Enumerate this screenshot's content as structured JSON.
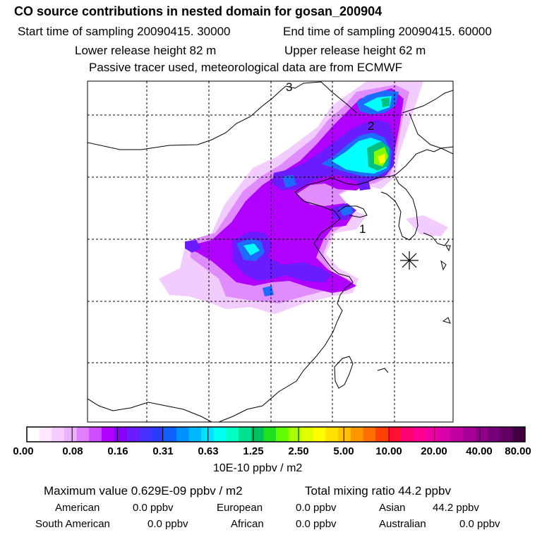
{
  "header": {
    "title": "CO  source contributions in nested domain for gosan_200904",
    "start_time": "Start time of sampling 20090415. 30000",
    "end_time": "End time of sampling 20090415. 60000",
    "lower_release": "Lower release height   82 m",
    "upper_release": "Upper release height   62 m",
    "note": "Passive tracer used, meteorological data are from ECMWF"
  },
  "map": {
    "track_labels": [
      "1",
      "2",
      "3"
    ],
    "receptor_marker": "asterisk-icon",
    "plume_colors": [
      "#f3ccff",
      "#e08cff",
      "#c040ff",
      "#9a00ff",
      "#5a20ff",
      "#1e6cff",
      "#00ffff",
      "#00c080",
      "#80ff00",
      "#ffff00"
    ]
  },
  "colorbar": {
    "colors": [
      "#ffffff",
      "#fbe8ff",
      "#f4ccff",
      "#ecb0ff",
      "#e080ff",
      "#cd4dff",
      "#b000ff",
      "#8a00ff",
      "#6a1cff",
      "#4a30ff",
      "#2a3cff",
      "#1060ff",
      "#0090ff",
      "#00b8ff",
      "#00e0ff",
      "#00ffee",
      "#00ffc0",
      "#00e090",
      "#00c060",
      "#20e020",
      "#60ff00",
      "#a8ff00",
      "#e0ff00",
      "#ffff00",
      "#ffe000",
      "#ffc000",
      "#ff9800",
      "#ff7000",
      "#ff4000",
      "#ff1030",
      "#ff0070",
      "#ff0090",
      "#f000a0",
      "#d800a8",
      "#c000a0",
      "#a80098",
      "#900088",
      "#780078",
      "#600060",
      "#400040"
    ],
    "labels": [
      "0.00",
      "0.08",
      "0.16",
      "0.31",
      "0.63",
      "1.25",
      "2.50",
      "5.00",
      "10.00",
      "20.00",
      "40.00",
      "80.00"
    ],
    "units": "10E-10 ppbv / m2"
  },
  "stats": {
    "max_value": "Maximum value  0.629E-09 ppbv / m2",
    "total_mixing": "Total mixing ratio       44.2 ppbv",
    "american_label": "American",
    "american_value": "0.0 ppbv",
    "european_label": "European",
    "european_value": "0.0 ppbv",
    "asian_label": "Asian",
    "asian_value": "44.2 ppbv",
    "south_american_label": "South American",
    "south_american_value": "0.0 ppbv",
    "african_label": "African",
    "african_value": "0.0 ppbv",
    "australian_label": "Australian",
    "australian_value": "0.0 ppbv"
  }
}
